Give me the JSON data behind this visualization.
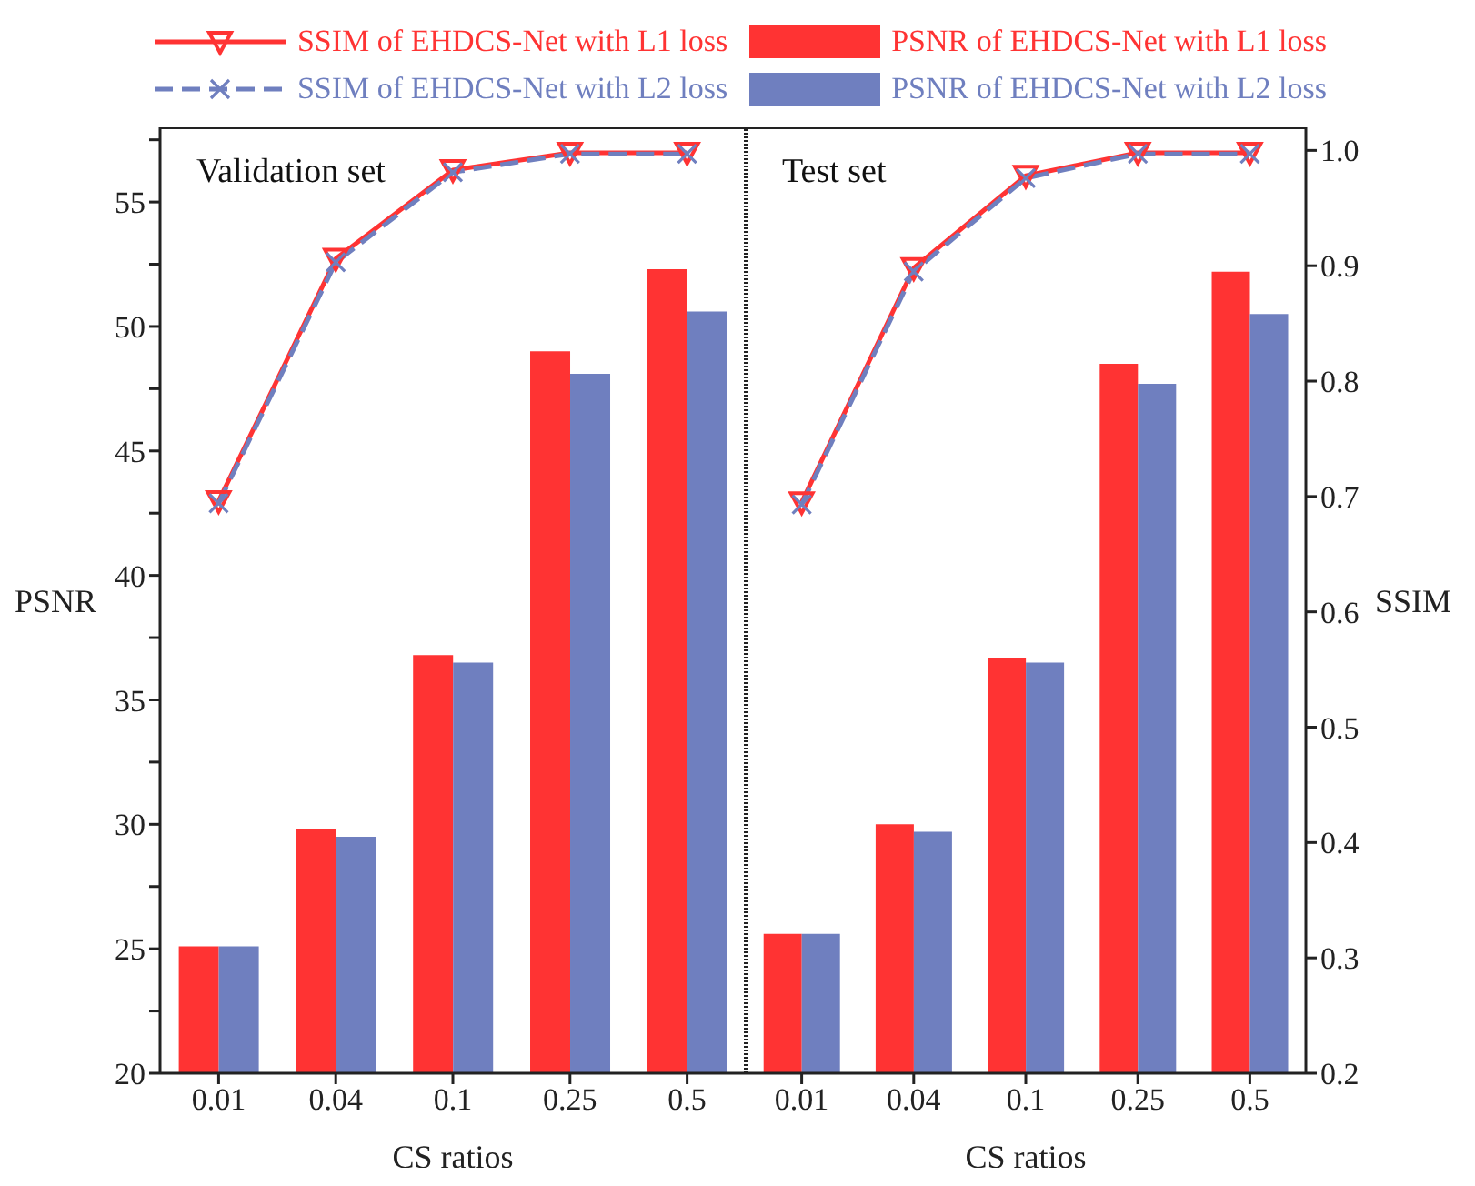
{
  "chart_data": [
    {
      "type": "bar",
      "categories": [
        "0.01",
        "0.04",
        "0.1",
        "0.25",
        "0.5"
      ],
      "xlabel": "CS ratios",
      "ylabel": "PSNR",
      "ylim": [
        20,
        58
      ],
      "yticks": [
        20,
        {
          "value": 22.5,
          "label": null
        },
        25,
        {
          "value": 27.5,
          "label": null
        },
        30,
        {
          "value": 32.5,
          "label": null
        },
        35,
        {
          "value": 37.5,
          "label": null
        },
        40,
        {
          "value": 42.5,
          "label": null
        },
        45,
        {
          "value": 47.5,
          "label": null
        },
        50,
        {
          "value": 52.5,
          "label": null
        },
        55,
        {
          "value": 57.5,
          "label": null
        }
      ],
      "y2lim": [
        0.2,
        1.02
      ],
      "annotations": [
        "Validation set"
      ],
      "legend": "top",
      "series": [
        {
          "name": "SSIM of EHDCS-Net with L1 loss",
          "type": "line",
          "axis": "y2",
          "color": "#ff3333",
          "marker": "triangle",
          "line_style": "solid",
          "values": [
            0.696,
            0.906,
            0.983,
            0.998,
            0.998
          ]
        },
        {
          "name": "SSIM of EHDCS-Net with L2 loss",
          "type": "line",
          "axis": "y2",
          "color": "#6f7fbf",
          "marker": "cross",
          "line_style": "dashed",
          "values": [
            0.694,
            0.903,
            0.981,
            0.997,
            0.997
          ]
        },
        {
          "name": "PSNR of EHDCS-Net with L1 loss",
          "color": "#ff3333",
          "values": [
            25.1,
            29.8,
            36.8,
            49.0,
            52.3
          ]
        },
        {
          "name": "PSNR of EHDCS-Net with L2 loss",
          "color": "#6f7fbf",
          "values": [
            25.1,
            29.5,
            36.5,
            48.1,
            50.6
          ]
        }
      ]
    },
    {
      "type": "bar",
      "categories": [
        "0.01",
        "0.04",
        "0.1",
        "0.25",
        "0.5"
      ],
      "xlabel": "CS ratios",
      "y2label": "SSIM",
      "ylim": [
        20,
        58
      ],
      "y2lim": [
        0.2,
        1.02
      ],
      "y2ticks": [
        0.2,
        0.3,
        0.4,
        0.5,
        0.6,
        0.7,
        0.8,
        0.9,
        {
          "value": 1,
          "label": "1.0"
        }
      ],
      "annotations": [
        "Test set"
      ],
      "series": [
        {
          "type": "line",
          "axis": "y2",
          "color": "#ff3333",
          "marker": "triangle",
          "line_style": "solid",
          "values": [
            0.695,
            0.898,
            0.978,
            0.998,
            0.998
          ]
        },
        {
          "type": "line",
          "axis": "y2",
          "color": "#6f7fbf",
          "marker": "cross",
          "line_style": "dashed",
          "values": [
            0.693,
            0.895,
            0.976,
            0.997,
            0.997
          ]
        },
        {
          "color": "#ff3333",
          "values": [
            25.6,
            30.0,
            36.7,
            48.5,
            52.2
          ]
        },
        {
          "color": "#6f7fbf",
          "values": [
            25.6,
            29.7,
            36.5,
            47.7,
            50.5
          ]
        }
      ]
    }
  ]
}
